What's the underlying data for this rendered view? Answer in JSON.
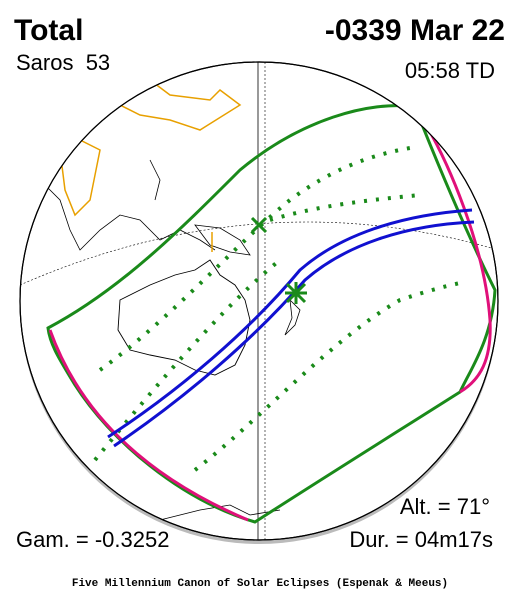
{
  "header": {
    "type": "Total",
    "date": "-0339 Mar 22",
    "saros": "Saros  53",
    "time": "05:58 TD"
  },
  "stats": {
    "altitude": "Alt. = 71°",
    "gamma": "Gam. = -0.3252",
    "duration": "Dur. = 04m17s"
  },
  "footer": "Five Millennium Canon of Solar Eclipses (Espenak & Meeus)"
}
